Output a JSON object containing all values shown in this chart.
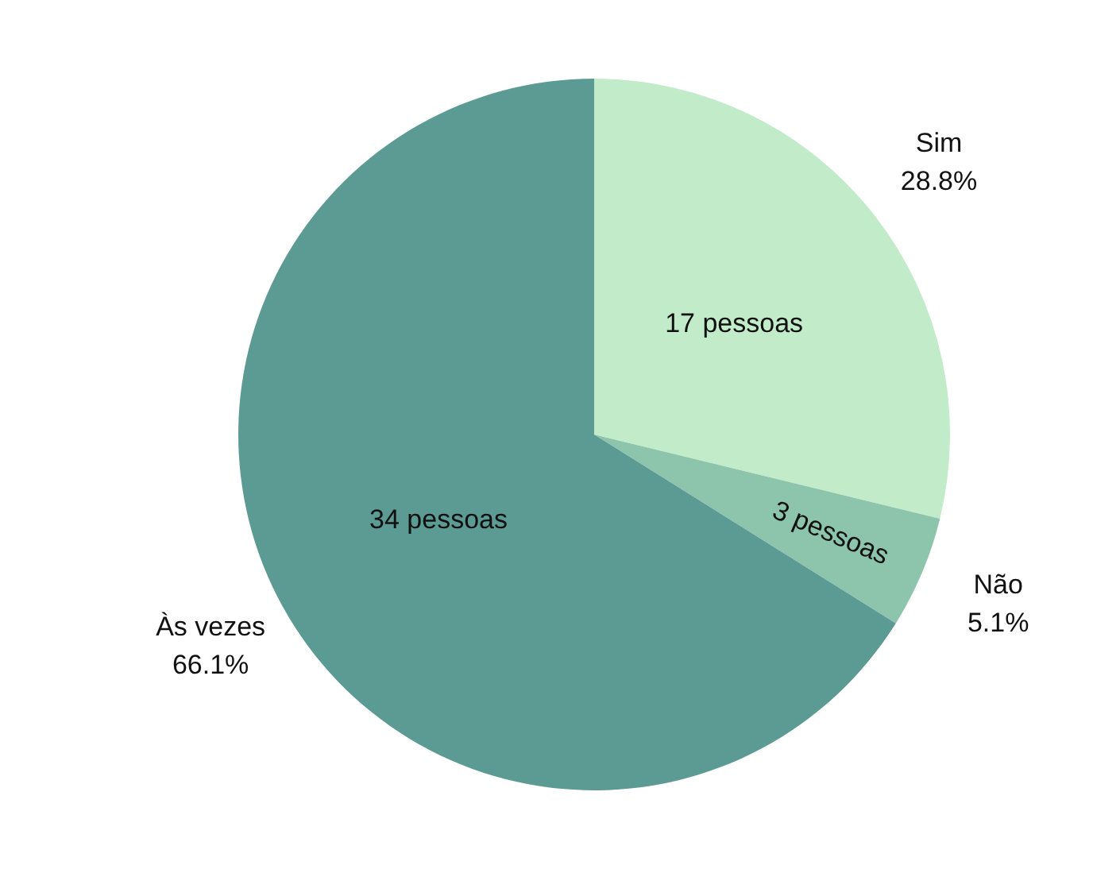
{
  "chart_data": {
    "type": "pie",
    "categories": [
      "Sim",
      "Não",
      "Às vezes"
    ],
    "values": [
      28.8,
      5.1,
      66.1
    ],
    "colors": [
      "#c2ebc9",
      "#8dc4ac",
      "#5c9b94"
    ],
    "value_labels": [
      "28.8%",
      "5.1%",
      "66.1%"
    ],
    "annotations": [
      {
        "text": "17 pessoas",
        "x": "Sim"
      },
      {
        "text": "3 pessoas",
        "x": "Não"
      },
      {
        "text": "34 pessoas",
        "x": "Às vezes"
      }
    ],
    "legend": false
  }
}
